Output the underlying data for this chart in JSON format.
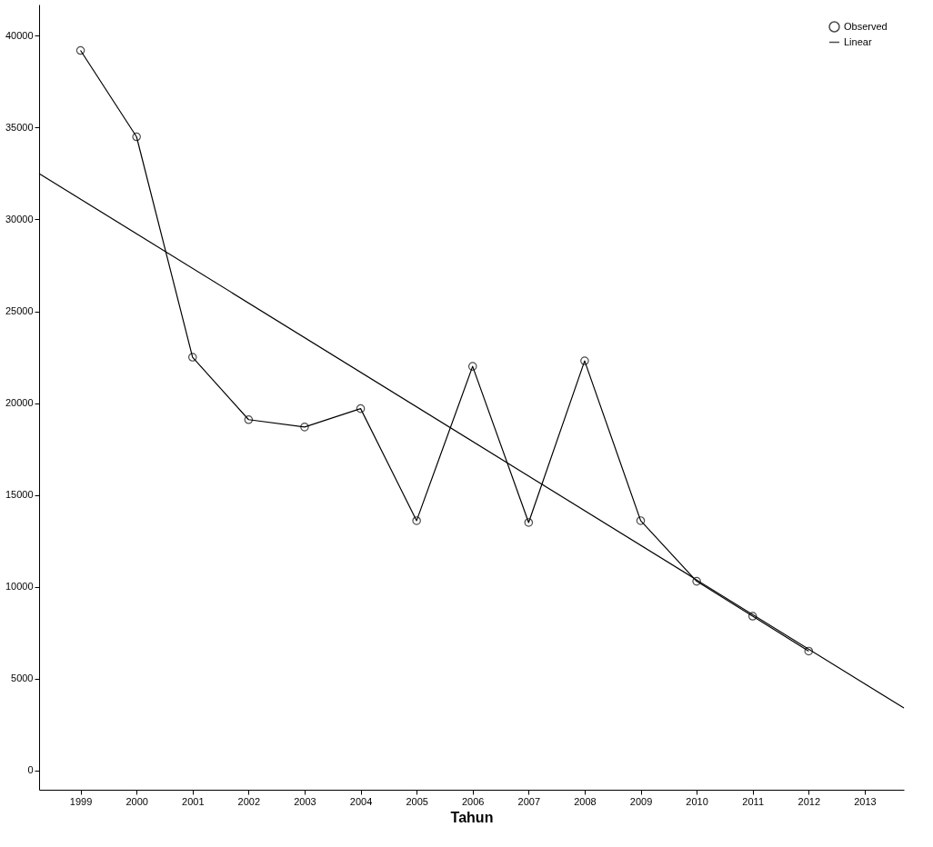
{
  "chart_data": {
    "type": "line",
    "xlabel": "Tahun",
    "xlim": [
      1998.26,
      2013.7
    ],
    "xticks": [
      1999,
      2000,
      2001,
      2002,
      2003,
      2004,
      2005,
      2006,
      2007,
      2008,
      2009,
      2010,
      2011,
      2012,
      2013
    ],
    "ylim": [
      -1050,
      41700
    ],
    "yticks": [
      0,
      5000,
      10000,
      15000,
      20000,
      25000,
      30000,
      35000,
      40000
    ],
    "grid": false,
    "legend": "top right",
    "x": [
      1999,
      2000,
      2001,
      2002,
      2003,
      2004,
      2005,
      2006,
      2007,
      2008,
      2009,
      2010,
      2011,
      2012
    ],
    "series": [
      {
        "name": "Observed",
        "color": "#000000",
        "marker": "circle",
        "values": [
          39200,
          34500,
          22500,
          19100,
          18700,
          19700,
          13600,
          22000,
          13500,
          22300,
          13600,
          10300,
          8400,
          6500
        ]
      },
      {
        "name": "Linear",
        "color": "#000000",
        "marker": "none",
        "x": [
          1998.26,
          2013.7
        ],
        "values": [
          32500,
          3400
        ]
      }
    ]
  }
}
